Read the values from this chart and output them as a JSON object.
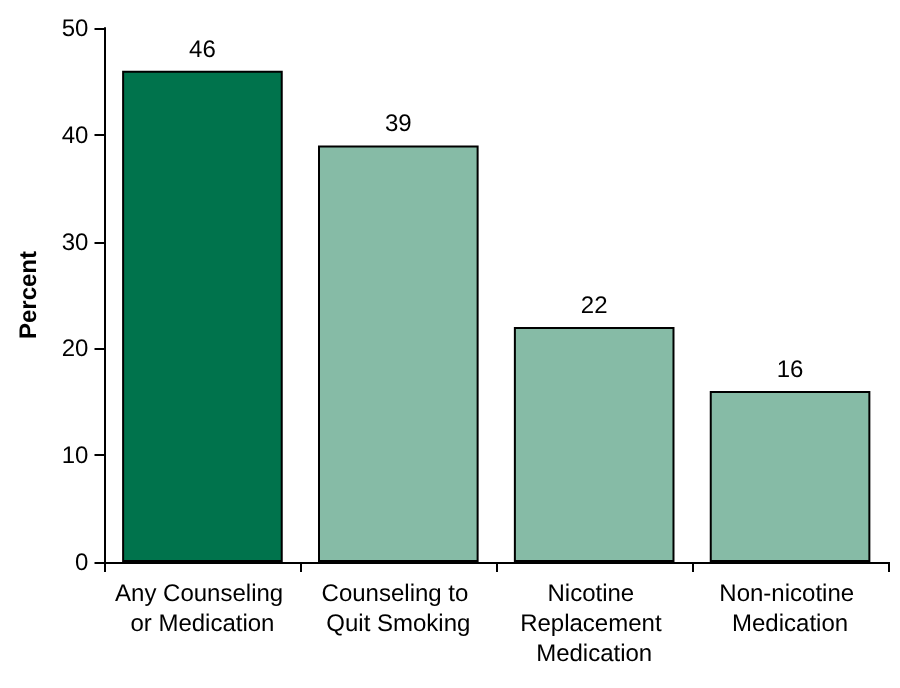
{
  "chart_data": {
    "type": "bar",
    "ylabel": "Percent",
    "categories": [
      "Any Counseling or Medication",
      "Counseling to Quit Smoking",
      "Nicotine Replacement Medication",
      "Non-nicotine Medication"
    ],
    "values": [
      46,
      39,
      22,
      16
    ],
    "colors": [
      "#00734c",
      "#86bba6",
      "#86bba6",
      "#86bba6"
    ],
    "ylim": [
      0,
      50
    ],
    "yticks": [
      0,
      10,
      20,
      30,
      40,
      50
    ],
    "grid": false,
    "data_labels": true
  }
}
